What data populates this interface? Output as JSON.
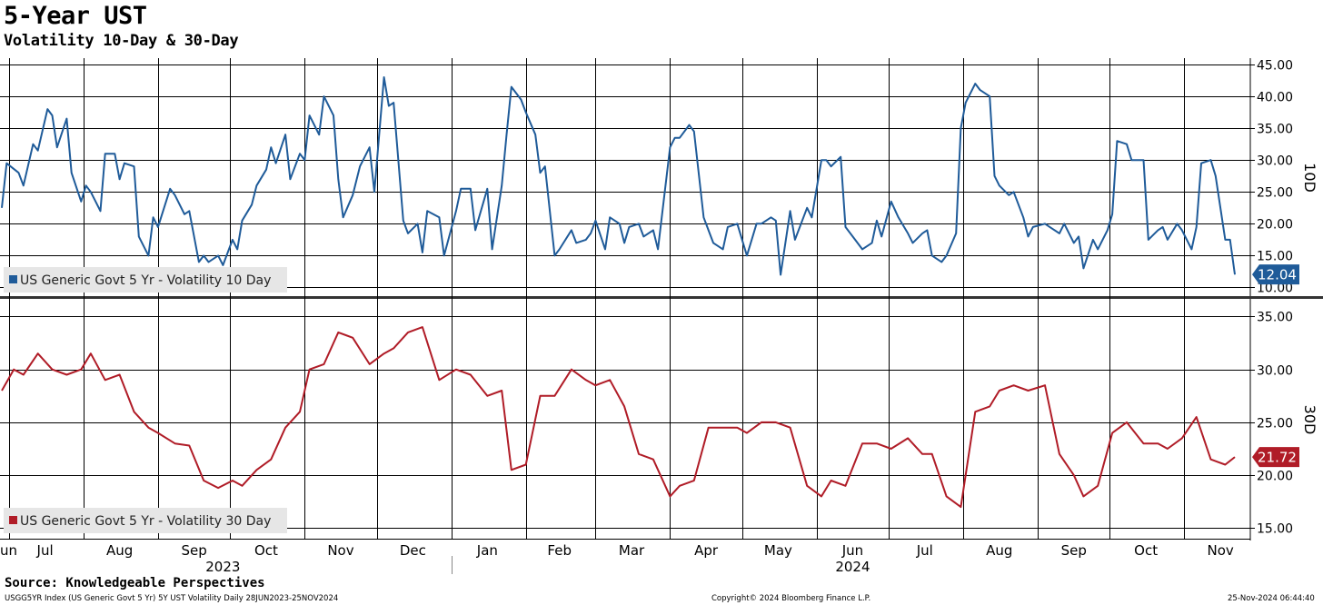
{
  "header": {
    "title": "5-Year UST",
    "subtitle": "Volatility 10-Day & 30-Day"
  },
  "footer": {
    "source": "Source: Knowledgeable Perspectives",
    "index_info": "USGG5YR Index (US Generic Govt 5 Yr) 5Y UST Volatility  Daily 28JUN2023-25NOV2024",
    "copyright": "Copyright© 2024 Bloomberg Finance L.P.",
    "timestamp": "25-Nov-2024 06:44:40"
  },
  "colors": {
    "series_10d": "#1f5b99",
    "series_30d": "#b01c27",
    "grid": "#000000",
    "legend_bg": "#e6e6e6"
  },
  "chart_data": [
    {
      "type": "line",
      "panel": "top",
      "axis_label": "10D",
      "ylim": [
        8.5,
        46
      ],
      "yticks": [
        10,
        15,
        20,
        25,
        30,
        35,
        40,
        45
      ],
      "ytick_labels": [
        "10.00",
        "15.00",
        "20.00",
        "25.00",
        "30.00",
        "35.00",
        "40.00",
        "45.00"
      ],
      "ytick_side": "right",
      "grid": true,
      "last_value_label": "12.04",
      "legend": {
        "label": "US Generic Govt 5 Yr - Volatility 10 Day",
        "placement": "bottom-left"
      },
      "series": [
        {
          "name": "US Generic Govt 5 Yr - Volatility 10 Day",
          "x": [
            "2023-06-28",
            "2023-06-30",
            "2023-07-05",
            "2023-07-07",
            "2023-07-11",
            "2023-07-13",
            "2023-07-17",
            "2023-07-19",
            "2023-07-21",
            "2023-07-25",
            "2023-07-27",
            "2023-07-31",
            "2023-08-02",
            "2023-08-04",
            "2023-08-08",
            "2023-08-10",
            "2023-08-14",
            "2023-08-16",
            "2023-08-18",
            "2023-08-22",
            "2023-08-24",
            "2023-08-28",
            "2023-08-30",
            "2023-09-01",
            "2023-09-06",
            "2023-09-08",
            "2023-09-12",
            "2023-09-14",
            "2023-09-18",
            "2023-09-20",
            "2023-09-22",
            "2023-09-26",
            "2023-09-28",
            "2023-10-02",
            "2023-10-04",
            "2023-10-06",
            "2023-10-10",
            "2023-10-12",
            "2023-10-16",
            "2023-10-18",
            "2023-10-20",
            "2023-10-24",
            "2023-10-26",
            "2023-10-30",
            "2023-11-01",
            "2023-11-03",
            "2023-11-07",
            "2023-11-09",
            "2023-11-13",
            "2023-11-15",
            "2023-11-17",
            "2023-11-21",
            "2023-11-24",
            "2023-11-28",
            "2023-11-30",
            "2023-12-04",
            "2023-12-06",
            "2023-12-08",
            "2023-12-12",
            "2023-12-14",
            "2023-12-18",
            "2023-12-20",
            "2023-12-22",
            "2023-12-27",
            "2023-12-29",
            "2024-01-03",
            "2024-01-05",
            "2024-01-09",
            "2024-01-11",
            "2024-01-16",
            "2024-01-18",
            "2024-01-22",
            "2024-01-24",
            "2024-01-26",
            "2024-01-30",
            "2024-02-01",
            "2024-02-05",
            "2024-02-07",
            "2024-02-09",
            "2024-02-13",
            "2024-02-15",
            "2024-02-20",
            "2024-02-22",
            "2024-02-26",
            "2024-02-28",
            "2024-03-01",
            "2024-03-05",
            "2024-03-07",
            "2024-03-11",
            "2024-03-13",
            "2024-03-15",
            "2024-03-19",
            "2024-03-21",
            "2024-03-25",
            "2024-03-27",
            "2024-04-01",
            "2024-04-03",
            "2024-04-05",
            "2024-04-09",
            "2024-04-11",
            "2024-04-15",
            "2024-04-17",
            "2024-04-19",
            "2024-04-23",
            "2024-04-25",
            "2024-04-29",
            "2024-05-01",
            "2024-05-03",
            "2024-05-07",
            "2024-05-09",
            "2024-05-13",
            "2024-05-15",
            "2024-05-17",
            "2024-05-21",
            "2024-05-23",
            "2024-05-28",
            "2024-05-30",
            "2024-06-03",
            "2024-06-05",
            "2024-06-07",
            "2024-06-11",
            "2024-06-13",
            "2024-06-17",
            "2024-06-20",
            "2024-06-24",
            "2024-06-26",
            "2024-06-28",
            "2024-07-02",
            "2024-07-05",
            "2024-07-09",
            "2024-07-11",
            "2024-07-15",
            "2024-07-17",
            "2024-07-19",
            "2024-07-23",
            "2024-07-25",
            "2024-07-29",
            "2024-07-31",
            "2024-08-02",
            "2024-08-06",
            "2024-08-08",
            "2024-08-12",
            "2024-08-14",
            "2024-08-16",
            "2024-08-20",
            "2024-08-22",
            "2024-08-26",
            "2024-08-28",
            "2024-08-30",
            "2024-09-04",
            "2024-09-06",
            "2024-09-10",
            "2024-09-12",
            "2024-09-16",
            "2024-09-18",
            "2024-09-20",
            "2024-09-24",
            "2024-09-26",
            "2024-09-30",
            "2024-10-02",
            "2024-10-04",
            "2024-10-08",
            "2024-10-10",
            "2024-10-15",
            "2024-10-17",
            "2024-10-21",
            "2024-10-23",
            "2024-10-25",
            "2024-10-29",
            "2024-10-31",
            "2024-11-04",
            "2024-11-06",
            "2024-11-08",
            "2024-11-12",
            "2024-11-14",
            "2024-11-18",
            "2024-11-20",
            "2024-11-22"
          ],
          "y": [
            22.5,
            29.5,
            28.0,
            26.0,
            32.5,
            31.5,
            38.0,
            37.0,
            32.0,
            36.5,
            28.0,
            23.5,
            26.0,
            25.0,
            22.0,
            31.0,
            31.0,
            27.0,
            29.5,
            29.0,
            18.0,
            15.0,
            21.0,
            19.5,
            25.5,
            24.5,
            21.5,
            22.0,
            14.0,
            15.0,
            14.0,
            15.0,
            13.5,
            17.5,
            16.0,
            20.5,
            23.0,
            26.0,
            28.5,
            32.0,
            29.5,
            34.0,
            27.0,
            31.0,
            30.0,
            37.0,
            34.0,
            40.0,
            37.0,
            27.0,
            21.0,
            24.5,
            29.0,
            32.0,
            25.0,
            43.0,
            38.5,
            39.0,
            20.5,
            18.5,
            20.0,
            15.5,
            22.0,
            21.0,
            15.0,
            22.0,
            25.5,
            25.5,
            19.0,
            25.5,
            16.0,
            26.0,
            34.0,
            41.5,
            39.5,
            37.5,
            34.0,
            28.0,
            29.0,
            15.0,
            16.0,
            19.0,
            17.0,
            17.5,
            18.5,
            20.5,
            16.0,
            21.0,
            20.0,
            17.0,
            19.5,
            20.0,
            18.0,
            19.0,
            16.0,
            32.0,
            33.5,
            33.5,
            35.5,
            34.5,
            21.0,
            19.0,
            17.0,
            16.0,
            19.5,
            20.0,
            17.5,
            15.0,
            20.0,
            20.0,
            21.0,
            20.5,
            12.0,
            22.0,
            17.5,
            22.5,
            21.0,
            30.0,
            30.0,
            29.0,
            30.5,
            19.5,
            17.5,
            16.0,
            17.0,
            20.5,
            18.0,
            23.5,
            21.0,
            18.5,
            17.0,
            18.5,
            19.0,
            15.0,
            14.0,
            15.0,
            18.5,
            35.0,
            39.0,
            42.0,
            41.0,
            40.0,
            27.5,
            26.0,
            24.5,
            25.0,
            21.0,
            18.0,
            19.5,
            20.0,
            19.5,
            18.5,
            20.0,
            17.0,
            18.0,
            13.0,
            17.5,
            16.0,
            19.0,
            21.5,
            33.0,
            32.5,
            30.0,
            30.0,
            17.5,
            19.0,
            19.5,
            17.5,
            20.0,
            19.0,
            16.0,
            19.5,
            29.5,
            30.0,
            27.5,
            17.5,
            17.5,
            12.04
          ]
        }
      ]
    },
    {
      "type": "line",
      "panel": "bottom",
      "axis_label": "30D",
      "ylim": [
        14,
        36.5
      ],
      "yticks": [
        15,
        20,
        25,
        30,
        35
      ],
      "ytick_labels": [
        "15.00",
        "20.00",
        "25.00",
        "30.00",
        "35.00"
      ],
      "ytick_side": "right",
      "grid": true,
      "last_value_label": "21.72",
      "legend": {
        "label": "US Generic Govt 5 Yr - Volatility 30 Day",
        "placement": "bottom-left"
      },
      "series": [
        {
          "name": "US Generic Govt 5 Yr - Volatility 30 Day",
          "x": [
            "2023-06-28",
            "2023-07-03",
            "2023-07-07",
            "2023-07-13",
            "2023-07-19",
            "2023-07-25",
            "2023-07-31",
            "2023-08-04",
            "2023-08-10",
            "2023-08-16",
            "2023-08-22",
            "2023-08-28",
            "2023-09-01",
            "2023-09-08",
            "2023-09-14",
            "2023-09-20",
            "2023-09-26",
            "2023-10-02",
            "2023-10-06",
            "2023-10-12",
            "2023-10-18",
            "2023-10-24",
            "2023-10-30",
            "2023-11-03",
            "2023-11-09",
            "2023-11-15",
            "2023-11-21",
            "2023-11-28",
            "2023-12-04",
            "2023-12-08",
            "2023-12-14",
            "2023-12-20",
            "2023-12-27",
            "2024-01-03",
            "2024-01-09",
            "2024-01-16",
            "2024-01-22",
            "2024-01-26",
            "2024-02-01",
            "2024-02-07",
            "2024-02-13",
            "2024-02-20",
            "2024-02-26",
            "2024-03-01",
            "2024-03-07",
            "2024-03-13",
            "2024-03-19",
            "2024-03-25",
            "2024-04-01",
            "2024-04-05",
            "2024-04-11",
            "2024-04-17",
            "2024-04-23",
            "2024-04-29",
            "2024-05-03",
            "2024-05-09",
            "2024-05-15",
            "2024-05-21",
            "2024-05-28",
            "2024-06-03",
            "2024-06-07",
            "2024-06-13",
            "2024-06-20",
            "2024-06-26",
            "2024-07-02",
            "2024-07-09",
            "2024-07-15",
            "2024-07-19",
            "2024-07-25",
            "2024-07-31",
            "2024-08-06",
            "2024-08-12",
            "2024-08-16",
            "2024-08-22",
            "2024-08-28",
            "2024-09-04",
            "2024-09-10",
            "2024-09-16",
            "2024-09-20",
            "2024-09-26",
            "2024-10-02",
            "2024-10-08",
            "2024-10-15",
            "2024-10-21",
            "2024-10-25",
            "2024-10-31",
            "2024-11-06",
            "2024-11-12",
            "2024-11-18",
            "2024-11-22"
          ],
          "y": [
            28.0,
            30.0,
            29.5,
            31.5,
            30.0,
            29.5,
            30.0,
            31.5,
            29.0,
            29.5,
            26.0,
            24.5,
            24.0,
            23.0,
            22.8,
            19.5,
            18.8,
            19.5,
            19.0,
            20.5,
            21.5,
            24.5,
            26.0,
            30.0,
            30.5,
            33.5,
            33.0,
            30.5,
            31.5,
            32.0,
            33.5,
            34.0,
            29.0,
            30.0,
            29.5,
            27.5,
            28.0,
            20.5,
            21.0,
            27.5,
            27.5,
            30.0,
            29.0,
            28.5,
            29.0,
            26.5,
            22.0,
            21.5,
            18.0,
            19.0,
            19.5,
            24.5,
            24.5,
            24.5,
            24.0,
            25.0,
            25.0,
            24.5,
            19.0,
            18.0,
            19.5,
            19.0,
            23.0,
            23.0,
            22.5,
            23.5,
            22.0,
            22.0,
            18.0,
            17.0,
            26.0,
            26.5,
            28.0,
            28.5,
            28.0,
            28.5,
            22.0,
            20.0,
            18.0,
            19.0,
            24.0,
            25.0,
            23.0,
            23.0,
            22.5,
            23.5,
            25.5,
            21.5,
            21.0,
            21.72
          ]
        }
      ]
    }
  ],
  "x_axis": {
    "month_labels": [
      "Jun",
      "Jul",
      "Aug",
      "Sep",
      "Oct",
      "Nov",
      "Dec",
      "Jan",
      "Feb",
      "Mar",
      "Apr",
      "May",
      "Jun",
      "Jul",
      "Aug",
      "Sep",
      "Oct",
      "Nov"
    ],
    "month_dates": [
      "2023-06-30",
      "2023-07-16",
      "2023-08-16",
      "2023-09-16",
      "2023-10-16",
      "2023-11-16",
      "2023-12-16",
      "2024-01-16",
      "2024-02-15",
      "2024-03-16",
      "2024-04-16",
      "2024-05-16",
      "2024-06-16",
      "2024-07-16",
      "2024-08-16",
      "2024-09-16",
      "2024-10-16",
      "2024-11-16"
    ],
    "year_labels": [
      "2023",
      "2024"
    ]
  }
}
